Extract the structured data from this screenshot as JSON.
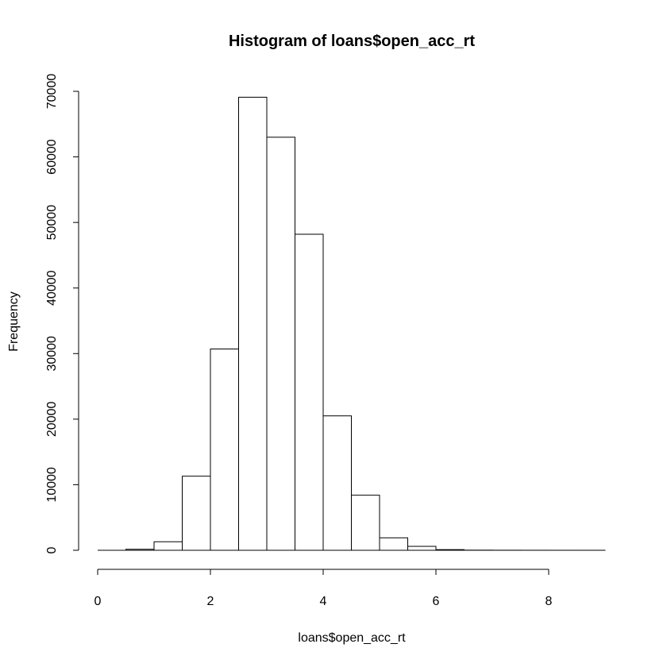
{
  "chart_data": {
    "type": "bar",
    "title": "Histogram of loans$open_acc_rt",
    "xlabel": "loans$open_acc_rt",
    "ylabel": "Frequency",
    "bin_width": 0.5,
    "bins": [
      {
        "x0": 0.5,
        "x1": 1.0,
        "count": 150
      },
      {
        "x0": 1.0,
        "x1": 1.5,
        "count": 1300
      },
      {
        "x0": 1.5,
        "x1": 2.0,
        "count": 11300
      },
      {
        "x0": 2.0,
        "x1": 2.5,
        "count": 30700
      },
      {
        "x0": 2.5,
        "x1": 3.0,
        "count": 69100
      },
      {
        "x0": 3.0,
        "x1": 3.5,
        "count": 63000
      },
      {
        "x0": 3.5,
        "x1": 4.0,
        "count": 48200
      },
      {
        "x0": 4.0,
        "x1": 4.5,
        "count": 20500
      },
      {
        "x0": 4.5,
        "x1": 5.0,
        "count": 8400
      },
      {
        "x0": 5.0,
        "x1": 5.5,
        "count": 1900
      },
      {
        "x0": 5.5,
        "x1": 6.0,
        "count": 600
      },
      {
        "x0": 6.0,
        "x1": 6.5,
        "count": 100
      },
      {
        "x0": 6.5,
        "x1": 7.0,
        "count": 20
      },
      {
        "x0": 7.0,
        "x1": 7.5,
        "count": 10
      },
      {
        "x0": 7.5,
        "x1": 8.0,
        "count": 5
      },
      {
        "x0": 8.0,
        "x1": 8.5,
        "count": 3
      },
      {
        "x0": 8.5,
        "x1": 9.0,
        "count": 2
      }
    ],
    "xlim": [
      0,
      9
    ],
    "ylim": [
      0,
      70000
    ],
    "x_ticks": [
      0,
      2,
      4,
      6,
      8
    ],
    "y_ticks": [
      0,
      10000,
      20000,
      30000,
      40000,
      50000,
      60000,
      70000
    ],
    "grid": false,
    "bar_fill": "#ffffff",
    "bar_stroke": "#000000"
  }
}
